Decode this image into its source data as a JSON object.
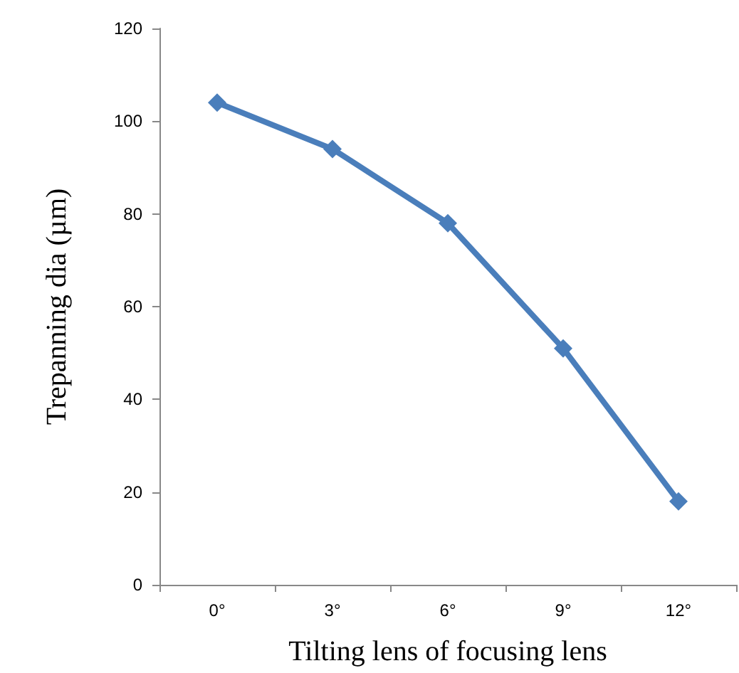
{
  "chart_data": {
    "type": "line",
    "xlabel": "Tilting lens of focusing lens",
    "ylabel": "Trepanning dia (µm)",
    "categories": [
      "0°",
      "3°",
      "6°",
      "9°",
      "12°"
    ],
    "series": [
      {
        "color": "#4a7ebb",
        "values": [
          104,
          94,
          78,
          51,
          18
        ]
      }
    ],
    "ylim": [
      0,
      120
    ],
    "yticks": [
      0,
      20,
      40,
      60,
      80,
      100,
      120
    ],
    "grid": false,
    "marker": "diamond",
    "line_style": "solid"
  }
}
